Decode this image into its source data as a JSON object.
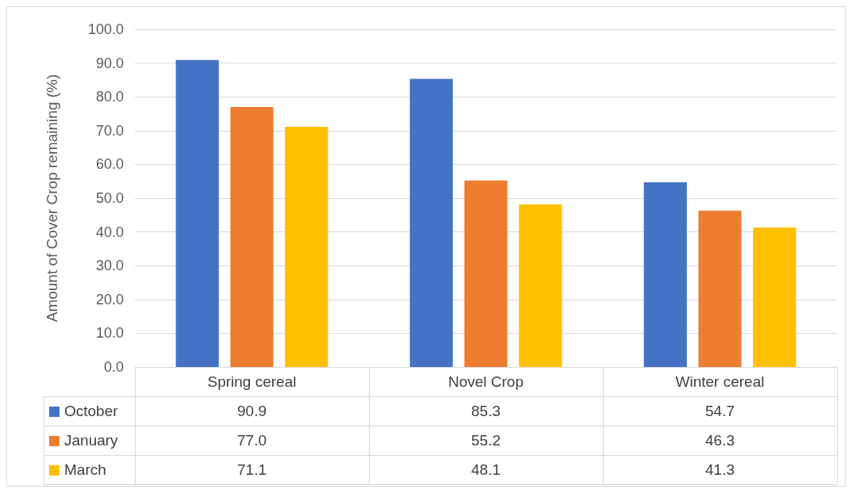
{
  "chart_data": {
    "type": "bar",
    "ylabel": "Amount of Cover Crop remaining (%)",
    "categories": [
      "Spring cereal",
      "Novel Crop",
      "Winter cereal"
    ],
    "series": [
      {
        "name": "October",
        "color": "#4472c4",
        "values": [
          90.9,
          85.3,
          54.7
        ],
        "value_labels": [
          "90.9",
          "85.3",
          "54.7"
        ]
      },
      {
        "name": "January",
        "color": "#ed7d31",
        "values": [
          77.0,
          55.2,
          46.3
        ],
        "value_labels": [
          "77.0",
          "55.2",
          "46.3"
        ]
      },
      {
        "name": "March",
        "color": "#ffc000",
        "values": [
          71.1,
          48.1,
          41.3
        ],
        "value_labels": [
          "71.1",
          "48.1",
          "41.3"
        ]
      }
    ],
    "ylim": [
      0,
      100
    ],
    "yticks": [
      {
        "value": 0,
        "label": "0.0"
      },
      {
        "value": 10,
        "label": "10.0"
      },
      {
        "value": 20,
        "label": "20.0"
      },
      {
        "value": 30,
        "label": "30.0"
      },
      {
        "value": 40,
        "label": "40.0"
      },
      {
        "value": 50,
        "label": "50.0"
      },
      {
        "value": 60,
        "label": "60.0"
      },
      {
        "value": 70,
        "label": "70.0"
      },
      {
        "value": 80,
        "label": "80.0"
      },
      {
        "value": 90,
        "label": "90.0"
      },
      {
        "value": 100,
        "label": "100.0"
      }
    ],
    "grid": "y",
    "legend": "bottom"
  }
}
